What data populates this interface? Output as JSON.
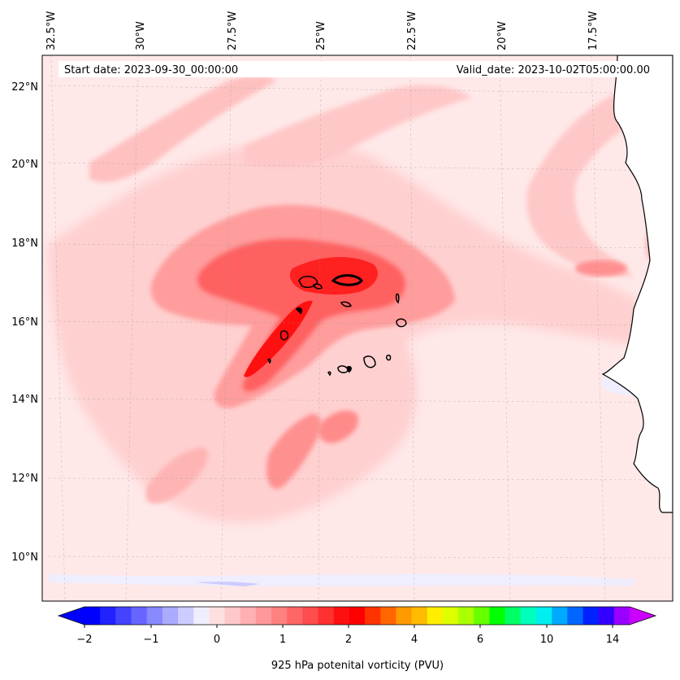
{
  "map": {
    "start_label": "Start date: 2023-09-30_00:00:00",
    "valid_label": "Valid_date: 2023-10-02T05:00:00.00",
    "lon_labels": [
      "32.5°W",
      "30°W",
      "27.5°W",
      "25°W",
      "22.5°W",
      "20°W",
      "17.5°W"
    ],
    "lat_labels": [
      "22°N",
      "20°N",
      "18°N",
      "16°N",
      "14°N",
      "12°N",
      "10°N"
    ],
    "background_color": "#ffe8e8",
    "land_color": "#ffffff"
  },
  "colorbar": {
    "label": "925 hPa potenital vorticity (PVU)",
    "tick_labels": [
      "−2",
      "−1",
      "0",
      "1",
      "2",
      "4",
      "6",
      "10",
      "14"
    ],
    "colors": [
      "#0000ff",
      "#2222ff",
      "#4444ff",
      "#6666ff",
      "#8888ff",
      "#aaaaff",
      "#ccccff",
      "#eeeeff",
      "#ffe0e0",
      "#ffc8c8",
      "#ffb0b0",
      "#ff9898",
      "#ff8080",
      "#ff6666",
      "#ff4c4c",
      "#ff3030",
      "#ff1010",
      "#ff0000",
      "#ff3300",
      "#ff6600",
      "#ff9900",
      "#ffbb00",
      "#ffee00",
      "#ddff00",
      "#aaff00",
      "#66ff00",
      "#00ff00",
      "#00ff66",
      "#00ffbb",
      "#00eeee",
      "#00aaff",
      "#0066ff",
      "#0022ff",
      "#3300ff",
      "#9900ff"
    ],
    "under_color": "#0000ff",
    "over_color": "#cc00ff"
  }
}
